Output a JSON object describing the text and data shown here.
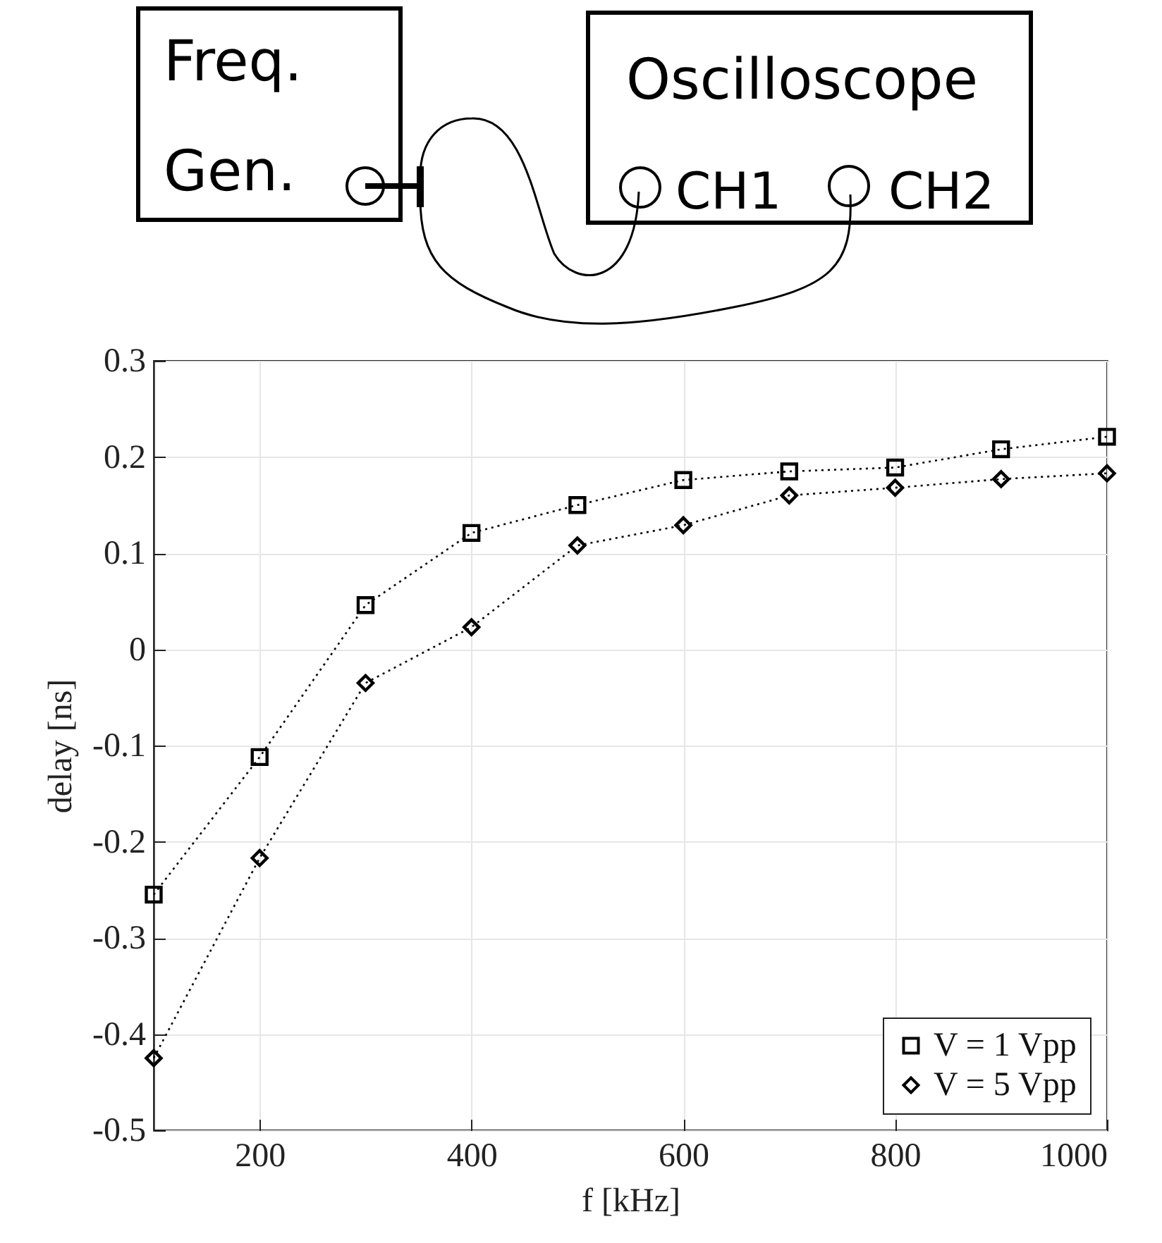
{
  "chart_data": {
    "type": "line",
    "xlabel": "f [kHz]",
    "ylabel": "delay [ns]",
    "annotations": [
      "Freq.",
      "Gen.",
      "Oscilloscope",
      "CH1",
      "CH2"
    ],
    "x": [
      100,
      200,
      300,
      400,
      500,
      600,
      700,
      800,
      900,
      1000
    ],
    "series": [
      {
        "name": "V = 1 Vpp",
        "color": "#000000",
        "marker": "square",
        "values": [
          -0.255,
          -0.112,
          0.046,
          0.121,
          0.15,
          0.176,
          0.185,
          0.189,
          0.208,
          0.221
        ]
      },
      {
        "name": "V = 5 Vpp",
        "color": "#000000",
        "marker": "diamond",
        "values": [
          -0.425,
          -0.217,
          -0.035,
          0.023,
          0.108,
          0.129,
          0.16,
          0.168,
          0.177,
          0.183
        ]
      }
    ],
    "xlim": [
      100,
      1000
    ],
    "xticks": [
      200,
      400,
      600,
      800,
      1000
    ],
    "ylim": [
      -0.5,
      0.3
    ],
    "yticks": [
      -0.5,
      -0.4,
      -0.3,
      -0.2,
      -0.1,
      0,
      0.1,
      0.2,
      0.3
    ],
    "grid": true,
    "legend": "bottom right",
    "line_style": "dotted"
  }
}
